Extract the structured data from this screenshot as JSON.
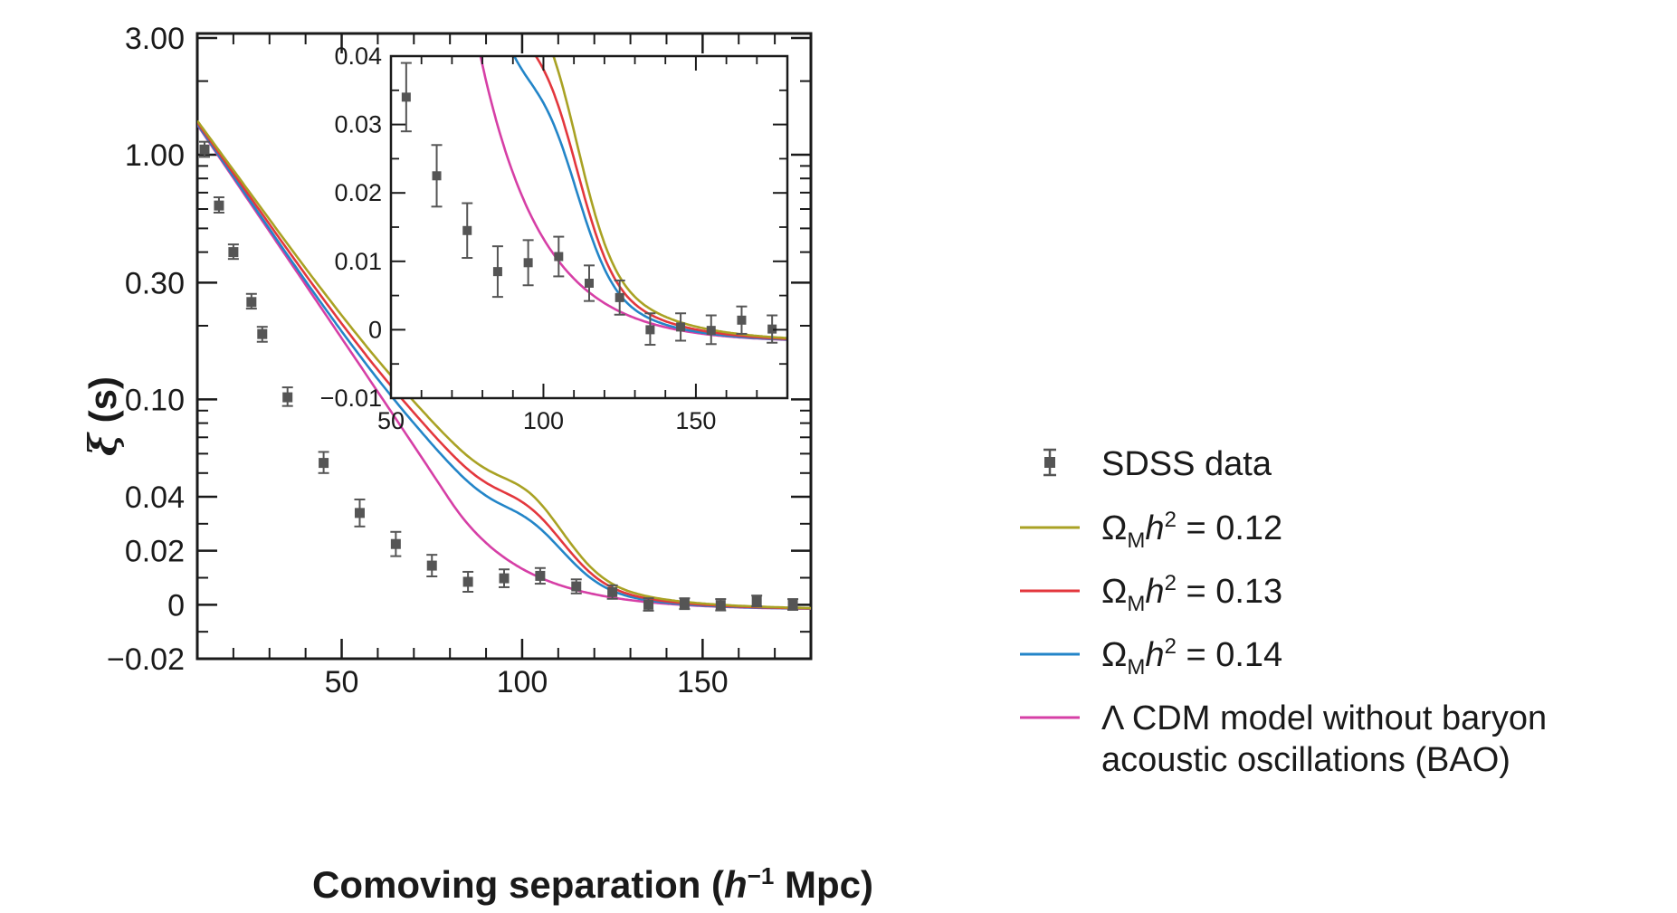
{
  "chart_data": {
    "type": "line",
    "title": "",
    "xlabel": {
      "main": "Comoving separation (",
      "italic": "h",
      "sup": "−1",
      "tail": " Mpc)"
    },
    "ylabel": {
      "symbol": "ξ",
      "tail": "(s)"
    },
    "x_range": [
      10,
      180
    ],
    "y_scale": "piecewise (log above 0.04, linear below)",
    "x_ticks": [
      "50",
      "100",
      "150"
    ],
    "y_ticks": [
      "3.00",
      "1.00",
      "0.30",
      "0.10",
      "0.04",
      "0.02",
      "0",
      "−0.02"
    ],
    "y_tick_values": [
      3.0,
      1.0,
      0.3,
      0.1,
      0.04,
      0.02,
      0,
      -0.02
    ],
    "data_label": "SDSS data",
    "data_points": [
      {
        "x": 12,
        "y": 1.05,
        "lo": 0.98,
        "hi": 1.13
      },
      {
        "x": 16,
        "y": 0.62,
        "lo": 0.58,
        "hi": 0.67
      },
      {
        "x": 20,
        "y": 0.4,
        "lo": 0.375,
        "hi": 0.43
      },
      {
        "x": 25,
        "y": 0.25,
        "lo": 0.235,
        "hi": 0.27
      },
      {
        "x": 28,
        "y": 0.185,
        "lo": 0.172,
        "hi": 0.198
      },
      {
        "x": 35,
        "y": 0.102,
        "lo": 0.094,
        "hi": 0.112
      },
      {
        "x": 45,
        "y": 0.055,
        "lo": 0.05,
        "hi": 0.061
      },
      {
        "x": 55,
        "y": 0.034,
        "lo": 0.029,
        "hi": 0.039
      },
      {
        "x": 65,
        "y": 0.0225,
        "lo": 0.018,
        "hi": 0.027
      },
      {
        "x": 75,
        "y": 0.0145,
        "lo": 0.0105,
        "hi": 0.0185
      },
      {
        "x": 85,
        "y": 0.0085,
        "lo": 0.0048,
        "hi": 0.0122
      },
      {
        "x": 95,
        "y": 0.0098,
        "lo": 0.0065,
        "hi": 0.0131
      },
      {
        "x": 105,
        "y": 0.0107,
        "lo": 0.0078,
        "hi": 0.0136
      },
      {
        "x": 115,
        "y": 0.0068,
        "lo": 0.0042,
        "hi": 0.0094
      },
      {
        "x": 125,
        "y": 0.0047,
        "lo": 0.0022,
        "hi": 0.0072
      },
      {
        "x": 135,
        "y": 0.0,
        "lo": -0.0022,
        "hi": 0.0024
      },
      {
        "x": 145,
        "y": 0.0004,
        "lo": -0.0016,
        "hi": 0.0024
      },
      {
        "x": 155,
        "y": -0.0001,
        "lo": -0.0021,
        "hi": 0.0021
      },
      {
        "x": 165,
        "y": 0.0014,
        "lo": -0.0006,
        "hi": 0.0034
      },
      {
        "x": 175,
        "y": 0.0001,
        "lo": -0.0019,
        "hi": 0.0021
      }
    ],
    "series": [
      {
        "name": "ΩMh² = 0.12",
        "label_parts": [
          "Ω",
          "M",
          "h",
          "2",
          " = 0.12"
        ],
        "color": "#a9a224",
        "A": 0.016,
        "B": 0.0148,
        "xi_start": 1.35,
        "k1": 0.0466
      },
      {
        "name": "ΩMh² = 0.13",
        "label_parts": [
          "Ω",
          "M",
          "h",
          "2",
          " = 0.13"
        ],
        "color": "#e3373d",
        "A": 0.014,
        "B": 0.0135,
        "xi_start": 1.33,
        "k1": 0.0482
      },
      {
        "name": "ΩMh² = 0.14",
        "label_parts": [
          "Ω",
          "M",
          "h",
          "2",
          " = 0.14"
        ],
        "color": "#2385c8",
        "A": 0.012,
        "B": 0.0125,
        "xi_start": 1.31,
        "k1": 0.0497
      },
      {
        "name": "Λ CDM model without baryon acoustic oscillations (BAO)",
        "label_lines": [
          "Λ CDM model without baryon",
          "acoustic oscillations (BAO)"
        ],
        "color": "#d63fa6",
        "A": 0.0,
        "B": 0.0,
        "xi_start": 1.3,
        "k1": 0.0505
      }
    ],
    "inset": {
      "x_range": [
        50,
        180
      ],
      "y_range": [
        -0.01,
        0.04
      ],
      "x_ticks": [
        "50",
        "100",
        "150"
      ],
      "x_tick_values": [
        50,
        100,
        150
      ],
      "y_ticks": [
        "0.04",
        "0.03",
        "0.02",
        "0.01",
        "0",
        "−0.01"
      ],
      "y_tick_values": [
        0.04,
        0.03,
        0.02,
        0.01,
        0,
        -0.01
      ]
    },
    "legend_position": "right"
  },
  "colors": {
    "axis": "#1a1a1a",
    "data": "#555555"
  }
}
